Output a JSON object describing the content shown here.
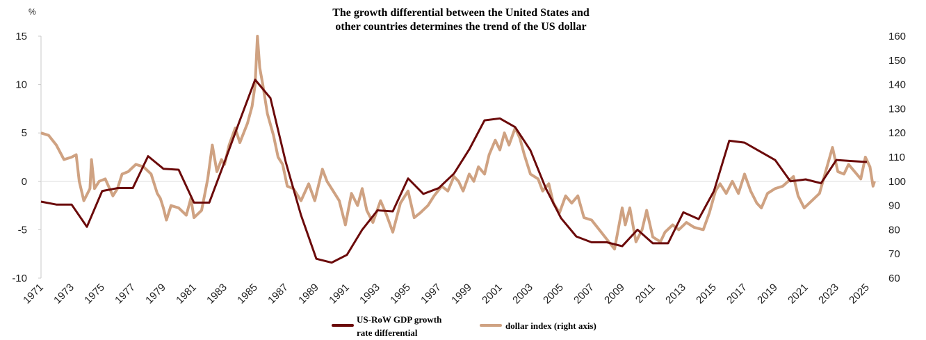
{
  "chart_data": {
    "type": "line",
    "title": [
      "The growth differential between the United States and",
      "other countries determines the trend of the US dollar"
    ],
    "ylabel": "%",
    "ylim": [
      -10,
      15
    ],
    "y_ticks": [
      "15",
      "10",
      "5",
      "0",
      "-5",
      "-10"
    ],
    "y2lim": [
      60,
      160
    ],
    "y2_ticks": [
      "160",
      "150",
      "140",
      "130",
      "120",
      "110",
      "100",
      "90",
      "80",
      "70",
      "60"
    ],
    "x_ticks": [
      "1971",
      "1973",
      "1975",
      "1977",
      "1979",
      "1981",
      "1983",
      "1985",
      "1987",
      "1989",
      "1991",
      "1993",
      "1995",
      "1997",
      "1999",
      "2001",
      "2003",
      "2005",
      "2007",
      "2009",
      "2011",
      "2013",
      "2015",
      "2017",
      "2019",
      "2021",
      "2023",
      "2025"
    ],
    "grid": "zero line only",
    "legend_position": "bottom",
    "series": [
      {
        "name": "US-RoW GDP growth rate differential",
        "legend_lines": [
          "US-RoW GDP growth",
          "rate differential"
        ],
        "axis": "left",
        "color": "#6b0a0a",
        "x": [
          1971,
          1972,
          1973,
          1974,
          1975,
          1976,
          1977,
          1978,
          1979,
          1980,
          1981,
          1982,
          1983,
          1984,
          1985,
          1986,
          1987,
          1988,
          1989,
          1990,
          1991,
          1992,
          1993,
          1994,
          1995,
          1996,
          1997,
          1998,
          1999,
          2000,
          2001,
          2002,
          2003,
          2004,
          2005,
          2006,
          2007,
          2008,
          2009,
          2010,
          2011,
          2012,
          2013,
          2014,
          2015,
          2016,
          2017,
          2018,
          2019,
          2020,
          2021,
          2022,
          2023,
          2024,
          2025
        ],
        "values": [
          -2.1,
          -2.4,
          -2.4,
          -4.7,
          -1.0,
          -0.7,
          -0.7,
          2.6,
          1.3,
          1.2,
          -2.2,
          -2.2,
          2.0,
          6.3,
          10.5,
          8.6,
          2.0,
          -3.5,
          -8.0,
          -8.4,
          -7.6,
          -5.0,
          -3.0,
          -3.1,
          0.3,
          -1.3,
          -0.7,
          0.8,
          3.3,
          6.3,
          6.5,
          5.6,
          3.2,
          -0.7,
          -3.8,
          -5.7,
          -6.3,
          -6.3,
          -6.7,
          -5.0,
          -6.4,
          -6.4,
          -3.2,
          -3.9,
          -1.0,
          4.2,
          4.0,
          3.1,
          2.2,
          0.0,
          0.2,
          -0.2,
          2.2,
          2.1,
          2.0
        ]
      },
      {
        "name": "dollar index (right axis)",
        "axis": "right",
        "color": "#cfa282",
        "x": [
          1971.0,
          1971.5,
          1972,
          1972.5,
          1973,
          1973.3,
          1973.5,
          1973.8,
          1974.2,
          1974.3,
          1974.5,
          1974.8,
          1975.2,
          1975.7,
          1976,
          1976.3,
          1976.7,
          1977.2,
          1977.7,
          1978.2,
          1978.6,
          1978.8,
          1979,
          1979.2,
          1979.5,
          1980,
          1980.5,
          1980.8,
          1981,
          1981.5,
          1981.9,
          1982.2,
          1982.5,
          1982.8,
          1983,
          1983.3,
          1983.7,
          1984,
          1984.5,
          1984.8,
          1985.0,
          1985.15,
          1985.3,
          1985.5,
          1985.8,
          1986.2,
          1986.5,
          1986.8,
          1987.1,
          1987.5,
          1988,
          1988.5,
          1988.9,
          1989.4,
          1989.7,
          1990,
          1990.5,
          1990.9,
          1991.3,
          1991.7,
          1992,
          1992.3,
          1992.7,
          1993.2,
          1993.6,
          1994,
          1994.5,
          1995,
          1995.4,
          1995.8,
          1996.3,
          1996.7,
          1997.2,
          1997.6,
          1998,
          1998.3,
          1998.6,
          1999,
          1999.3,
          1999.6,
          2000,
          2000.3,
          2000.7,
          2001,
          2001.3,
          2001.6,
          2002,
          2002.3,
          2002.6,
          2003,
          2003.5,
          2003.8,
          2004.2,
          2004.5,
          2004.9,
          2005.3,
          2005.7,
          2006.1,
          2006.5,
          2007,
          2007.5,
          2008,
          2008.5,
          2009,
          2009.2,
          2009.5,
          2009.9,
          2010.3,
          2010.6,
          2011,
          2011.5,
          2011.8,
          2012.3,
          2012.7,
          2013.2,
          2013.7,
          2014.3,
          2014.7,
          2015.1,
          2015.4,
          2015.8,
          2016.2,
          2016.6,
          2017,
          2017.4,
          2017.8,
          2018.1,
          2018.5,
          2019,
          2019.5,
          2020.2,
          2020.5,
          2020.9,
          2021.4,
          2021.9,
          2022.3,
          2022.75,
          2023.1,
          2023.5,
          2023.8,
          2024.2,
          2024.6,
          2024.9,
          2025.2,
          2025.4,
          2025.5
        ],
        "values": [
          120,
          119,
          115,
          109,
          110,
          111,
          100,
          92,
          97,
          109,
          97,
          100,
          101,
          94,
          97,
          103,
          104,
          107,
          106,
          103,
          95,
          93,
          89,
          84,
          90,
          89,
          86,
          93,
          85,
          88,
          101,
          115,
          104,
          109,
          107,
          115,
          122,
          116,
          124,
          131,
          140,
          160,
          147,
          140,
          128,
          119,
          110,
          107,
          98,
          97,
          92,
          99,
          92,
          105,
          100,
          97,
          92,
          82,
          95,
          90,
          97,
          88,
          83,
          92,
          86,
          79,
          91,
          96,
          85,
          87,
          90,
          94,
          98,
          96,
          102,
          100,
          96,
          103,
          100,
          106,
          103,
          111,
          117,
          113,
          120,
          115,
          122,
          118,
          111,
          103,
          101,
          96,
          99,
          91,
          87,
          94,
          91,
          94,
          85,
          84,
          80,
          76,
          72,
          89,
          82,
          89,
          75,
          80,
          88,
          77,
          75,
          79,
          82,
          80,
          83,
          81,
          80,
          87,
          96,
          99,
          95,
          100,
          95,
          103,
          96,
          91,
          89,
          95,
          97,
          98,
          102,
          94,
          89,
          92,
          95,
          104,
          114,
          104,
          103,
          107,
          104,
          101,
          110,
          106,
          98,
          100
        ]
      }
    ]
  }
}
